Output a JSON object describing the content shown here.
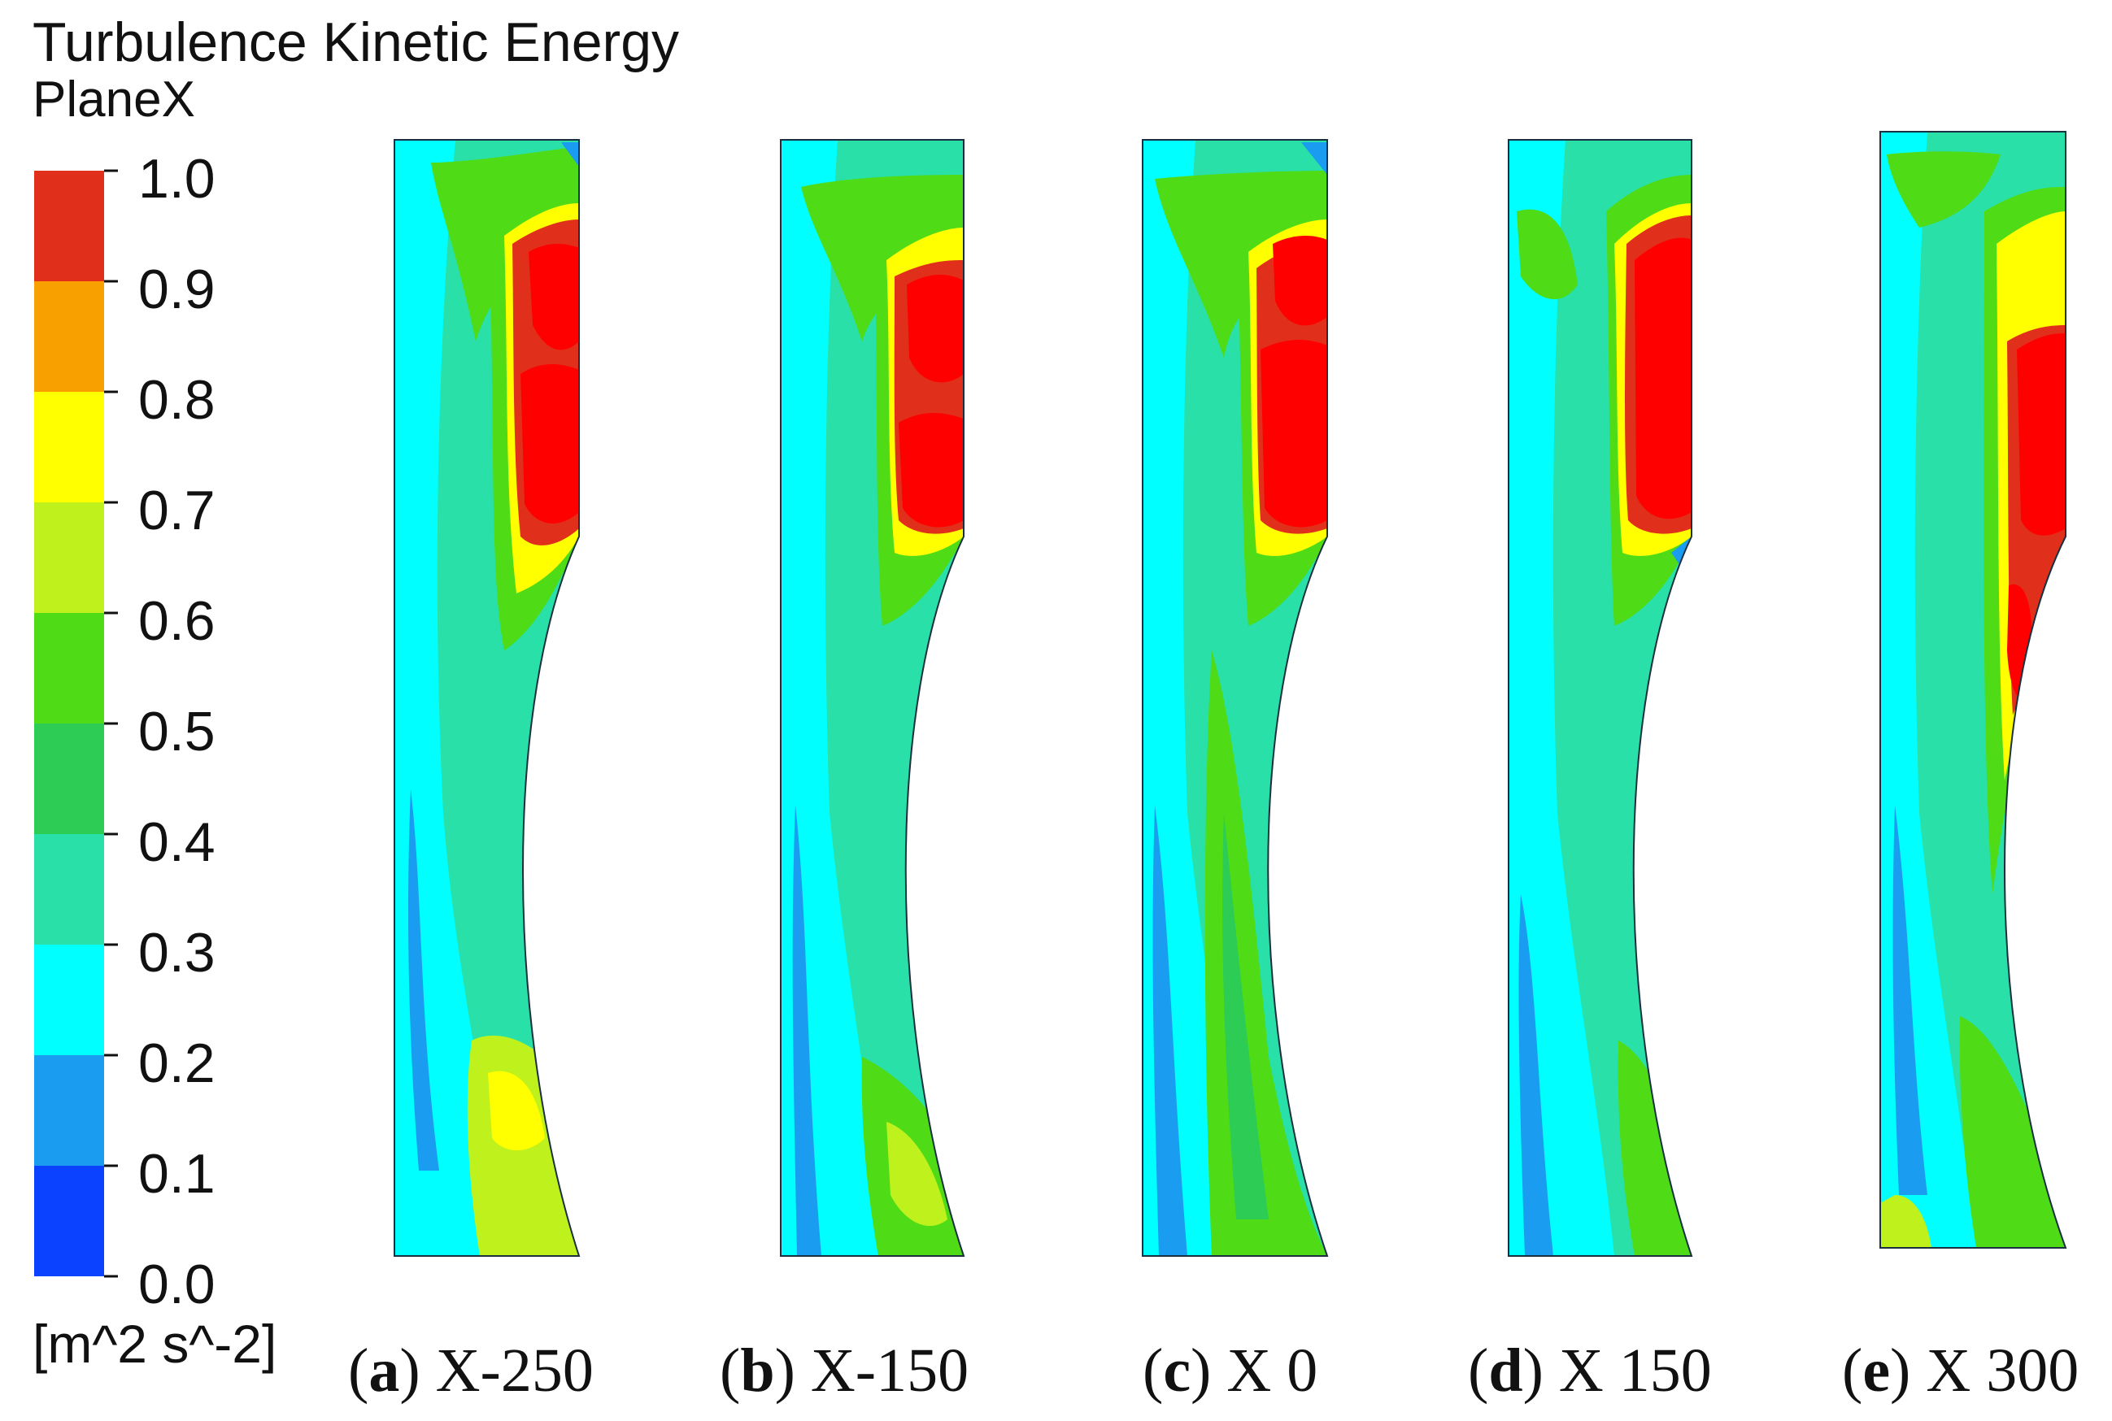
{
  "legend": {
    "title": "Turbulence Kinetic Energy",
    "subtitle": "PlaneX",
    "unit": "[m^2 s^-2]",
    "ticks": [
      "1.0",
      "0.9",
      "0.8",
      "0.7",
      "0.6",
      "0.5",
      "0.4",
      "0.3",
      "0.2",
      "0.1",
      "0.0"
    ],
    "colors": [
      "#e0301c",
      "#f8a000",
      "#ffff00",
      "#bff21c",
      "#4fdc17",
      "#2ccc55",
      "#28e0a8",
      "#00ffff",
      "#1a9df0",
      "#0a42ff"
    ]
  },
  "panels": [
    {
      "letter": "a",
      "label": "X-250"
    },
    {
      "letter": "b",
      "label": "X-150"
    },
    {
      "letter": "c",
      "label": "X 0"
    },
    {
      "letter": "d",
      "label": "X 150"
    },
    {
      "letter": "e",
      "label": "X 300"
    }
  ]
}
